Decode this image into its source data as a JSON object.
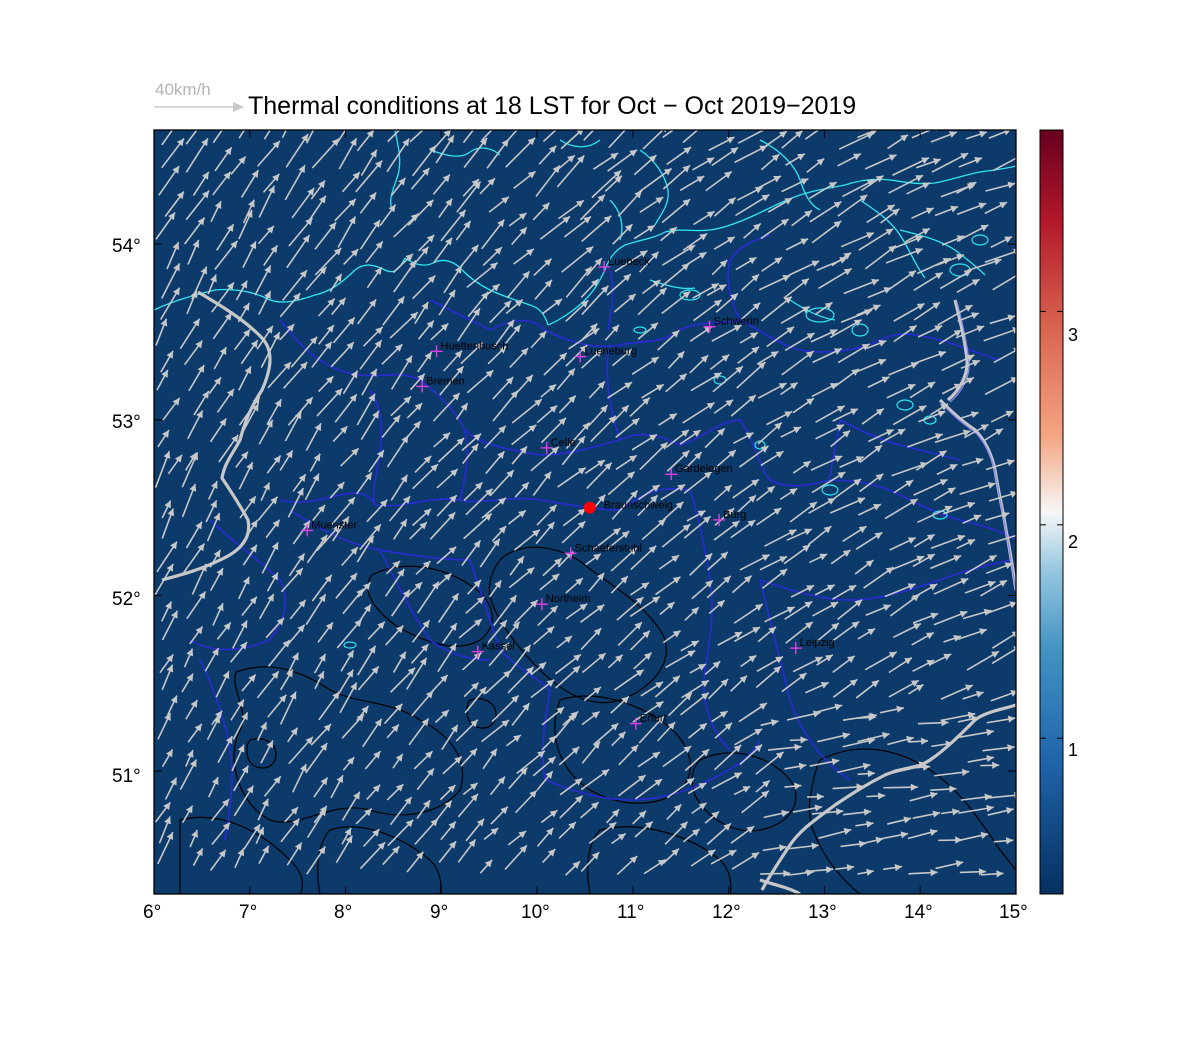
{
  "map": {
    "title": "Thermal conditions at 18 LST for Oct − Oct  2019−2019",
    "reference_vector_label": "40km/h",
    "background_color": "#0b3a6b",
    "extent": {
      "lon": [
        6,
        15
      ],
      "lat": [
        50.3,
        54.65
      ]
    },
    "lon_ticks": [
      "6°",
      "7°",
      "8°",
      "9°",
      "10°",
      "11°",
      "12°",
      "13°",
      "14°",
      "15°"
    ],
    "lat_ticks": [
      "51°",
      "52°",
      "53°",
      "54°"
    ],
    "colorbar": {
      "ticks": [
        "1",
        "2",
        "3"
      ],
      "range": [
        0.27,
        3.85
      ],
      "colormap": "RdBu_r",
      "color_low": "#053061",
      "color_mid": "#f7f7f7",
      "color_high": "#67001f"
    },
    "wind_arrows": {
      "color": "#c8c8c8",
      "direction": "southwest-to-northeast",
      "icon": "arrow-icon"
    },
    "cities": [
      {
        "name": "Luebeck",
        "lon": 10.7,
        "lat": 53.87
      },
      {
        "name": "Schwerin",
        "lon": 11.8,
        "lat": 53.53
      },
      {
        "name": "Huettenbusch",
        "lon": 8.95,
        "lat": 53.39
      },
      {
        "name": "Lueneburg",
        "lon": 10.45,
        "lat": 53.36
      },
      {
        "name": "Bremen",
        "lon": 8.8,
        "lat": 53.19
      },
      {
        "name": "Celle",
        "lon": 10.1,
        "lat": 52.84
      },
      {
        "name": "Gardelegen",
        "lon": 11.4,
        "lat": 52.69
      },
      {
        "name": "Burg",
        "lon": 11.9,
        "lat": 52.43
      },
      {
        "name": "Muenster",
        "lon": 7.6,
        "lat": 52.37
      },
      {
        "name": "Schaeferstuhl",
        "lon": 10.35,
        "lat": 52.24
      },
      {
        "name": "Northeim",
        "lon": 10.05,
        "lat": 51.95
      },
      {
        "name": "Kassel",
        "lon": 9.38,
        "lat": 51.68
      },
      {
        "name": "Leipzig",
        "lon": 12.7,
        "lat": 51.7
      },
      {
        "name": "Erfurt",
        "lon": 11.03,
        "lat": 51.27
      }
    ],
    "highlight": {
      "name": "Braunschweig",
      "lon": 10.55,
      "lat": 52.5,
      "color": "#ff0000"
    }
  }
}
